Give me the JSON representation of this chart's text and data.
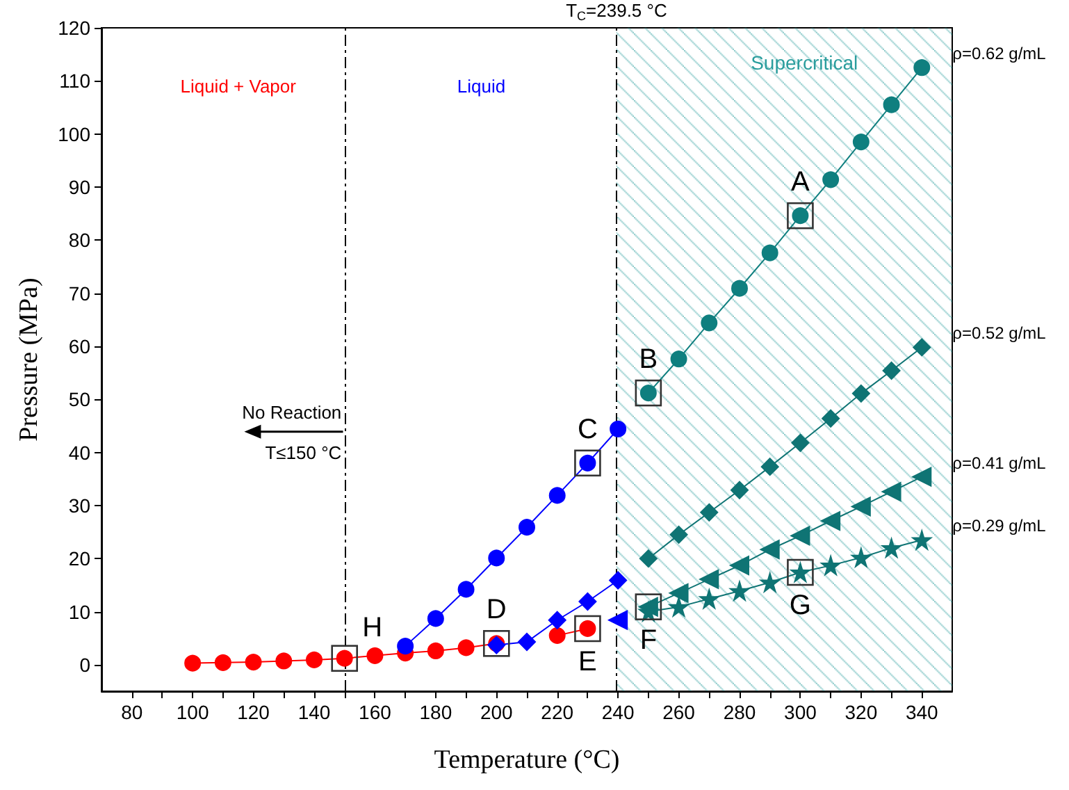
{
  "chart_data": {
    "type": "line",
    "xlabel": "Temperature (°C)",
    "ylabel": "Pressure (MPa)",
    "xlim": [
      70,
      350
    ],
    "ylim": [
      -5,
      120
    ],
    "xticks": [
      {
        "value": 80,
        "label": "80"
      },
      {
        "value": 90,
        "label": null
      },
      {
        "value": 100,
        "label": "100"
      },
      {
        "value": 110,
        "label": null
      },
      {
        "value": 120,
        "label": "120"
      },
      {
        "value": 130,
        "label": null
      },
      {
        "value": 140,
        "label": "140"
      },
      {
        "value": 150,
        "label": null
      },
      {
        "value": 160,
        "label": "160"
      },
      {
        "value": 170,
        "label": null
      },
      {
        "value": 180,
        "label": "180"
      },
      {
        "value": 190,
        "label": null
      },
      {
        "value": 200,
        "label": "200"
      },
      {
        "value": 210,
        "label": null
      },
      {
        "value": 220,
        "label": "220"
      },
      {
        "value": 230,
        "label": null
      },
      {
        "value": 240,
        "label": "240"
      },
      {
        "value": 250,
        "label": null
      },
      {
        "value": 260,
        "label": "260"
      },
      {
        "value": 270,
        "label": null
      },
      {
        "value": 280,
        "label": "280"
      },
      {
        "value": 290,
        "label": null
      },
      {
        "value": 300,
        "label": "300"
      },
      {
        "value": 310,
        "label": null
      },
      {
        "value": 320,
        "label": "320"
      },
      {
        "value": 330,
        "label": null
      },
      {
        "value": 340,
        "label": "340"
      }
    ],
    "yticks": [
      0,
      10,
      20,
      30,
      40,
      50,
      60,
      70,
      80,
      90,
      100,
      110,
      120
    ],
    "grid": false,
    "legend": false,
    "line_style": "solid",
    "series": [
      {
        "color": "#ff0000",
        "marker": "circle",
        "x": [
          100,
          110,
          120,
          130,
          140,
          150,
          160,
          170,
          180,
          190,
          200,
          210,
          220,
          230
        ],
        "values": [
          0.3,
          0.4,
          0.5,
          0.7,
          0.9,
          1.2,
          1.7,
          2.2,
          2.6,
          3.2,
          4.0,
          null,
          5.5,
          6.8
        ]
      },
      {
        "color": "#0000ff",
        "marker": "circle",
        "x": [
          170,
          180,
          190,
          200,
          210,
          220,
          230,
          240
        ],
        "values": [
          3.5,
          8.7,
          14.2,
          20.1,
          25.9,
          31.9,
          38.0,
          44.4
        ]
      },
      {
        "color": "#0000ff",
        "marker": "diamond",
        "x": [
          200,
          210,
          220,
          230,
          240
        ],
        "values": [
          3.7,
          4.3,
          8.4,
          11.9,
          15.9
        ]
      },
      {
        "color": "#0000ff",
        "marker": "triangle",
        "x": [
          240
        ],
        "values": [
          8.4
        ]
      },
      {
        "name": "ρ=0.62 g/mL",
        "color": "#0f7f7f",
        "marker": "circle",
        "x": [
          250,
          260,
          270,
          280,
          290,
          300,
          310,
          320,
          330,
          340
        ],
        "values": [
          51.2,
          57.6,
          64.4,
          70.9,
          77.6,
          84.6,
          91.4,
          98.5,
          105.5,
          112.5
        ]
      },
      {
        "name": "ρ=0.52 g/mL",
        "color": "#0f7474",
        "marker": "diamond",
        "x": [
          250,
          260,
          270,
          280,
          290,
          300,
          310,
          320,
          330,
          340
        ],
        "values": [
          20.0,
          24.5,
          28.7,
          32.9,
          37.3,
          41.8,
          46.4,
          51.1,
          55.4,
          59.8
        ]
      },
      {
        "name": "ρ=0.41 g/mL",
        "color": "#0f7474",
        "marker": "triangle",
        "x": [
          250,
          260,
          270,
          280,
          290,
          300,
          310,
          320,
          330,
          340
        ],
        "values": [
          10.9,
          13.5,
          16.1,
          18.7,
          21.7,
          24.3,
          27.1,
          29.8,
          32.6,
          35.4
        ]
      },
      {
        "name": "ρ=0.29 g/mL",
        "color": "#0f7474",
        "marker": "star",
        "x": [
          250,
          260,
          270,
          280,
          290,
          300,
          310,
          320,
          330,
          340
        ],
        "values": [
          10.0,
          10.9,
          12.4,
          13.9,
          15.5,
          17.4,
          18.7,
          20.2,
          22.0,
          23.5
        ]
      }
    ],
    "ref_lines": [
      {
        "axis": "x",
        "value": 150,
        "line_style": "dashed"
      },
      {
        "axis": "x",
        "value": 239.5,
        "label": "T$_{C}$=239.5 °C",
        "line_style": "dashed"
      }
    ],
    "bands": [
      {
        "axis": "x",
        "from": 239.5,
        "to": 350,
        "label": "Supercritical",
        "color": "#2a9d9d"
      }
    ],
    "annotations": [
      "Liquid + Vapor",
      "Liquid",
      "No Reaction",
      "T≤150 °C",
      {
        "text": "A",
        "x": 300,
        "y": 84.6
      },
      {
        "text": "B",
        "x": 250,
        "y": 51.2
      },
      {
        "text": "C",
        "x": 230,
        "y": 38.0
      },
      {
        "text": "D",
        "x": 200,
        "y": 4.0
      },
      {
        "text": "E",
        "x": 230,
        "y": 6.8
      },
      {
        "text": "F",
        "x": 250,
        "y": 10.9
      },
      {
        "text": "G",
        "x": 300,
        "y": 17.4
      },
      {
        "text": "H",
        "x": 150,
        "y": 1.2
      }
    ]
  }
}
